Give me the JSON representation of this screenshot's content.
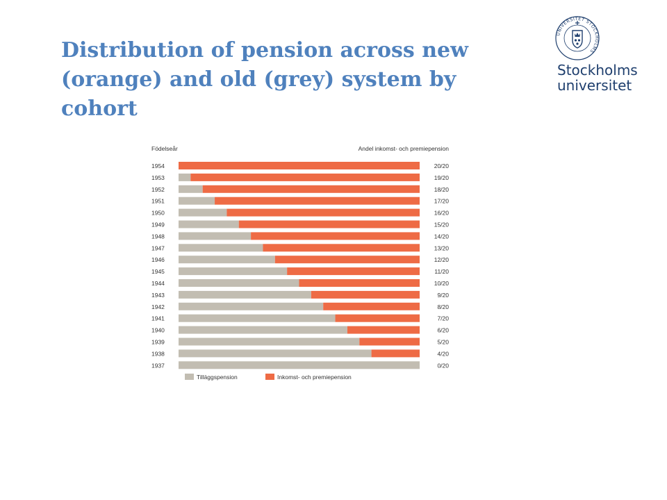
{
  "slide": {
    "title": "Distribution of pension across new (orange) and old (grey) system by cohort"
  },
  "logo": {
    "seal_text": "UNIVERSITET STOCKHOLMS",
    "word1": "Stockholms",
    "word2": "universitet",
    "seal_icon": "university-crest-icon"
  },
  "colors": {
    "title": "#4f81bd",
    "logo": "#1f3f6e",
    "old_system": "#c2bdb2",
    "new_system": "#ee6b45",
    "chart_text": "#333333"
  },
  "chart_data": {
    "type": "bar",
    "orientation": "horizontal",
    "stacked": true,
    "row_header": "Födelseår",
    "value_header": "Andel inkomst- och premiepension",
    "categories": [
      "1954",
      "1953",
      "1952",
      "1951",
      "1950",
      "1949",
      "1948",
      "1947",
      "1946",
      "1945",
      "1944",
      "1943",
      "1942",
      "1941",
      "1940",
      "1939",
      "1938",
      "1937"
    ],
    "value_labels": [
      "20/20",
      "19/20",
      "18/20",
      "17/20",
      "16/20",
      "15/20",
      "14/20",
      "13/20",
      "12/20",
      "11/20",
      "10/20",
      "9/20",
      "8/20",
      "7/20",
      "6/20",
      "5/20",
      "4/20",
      "0/20"
    ],
    "series": [
      {
        "name": "Tilläggspension",
        "values": [
          0,
          1,
          2,
          3,
          4,
          5,
          6,
          7,
          8,
          9,
          10,
          11,
          12,
          13,
          14,
          15,
          16,
          20
        ]
      },
      {
        "name": "Inkomst- och premiepension",
        "values": [
          20,
          19,
          18,
          17,
          16,
          15,
          14,
          13,
          12,
          11,
          10,
          9,
          8,
          7,
          6,
          5,
          4,
          0
        ]
      }
    ],
    "xlim": [
      0,
      20
    ],
    "grid": false,
    "legend_position": "bottom-left"
  }
}
